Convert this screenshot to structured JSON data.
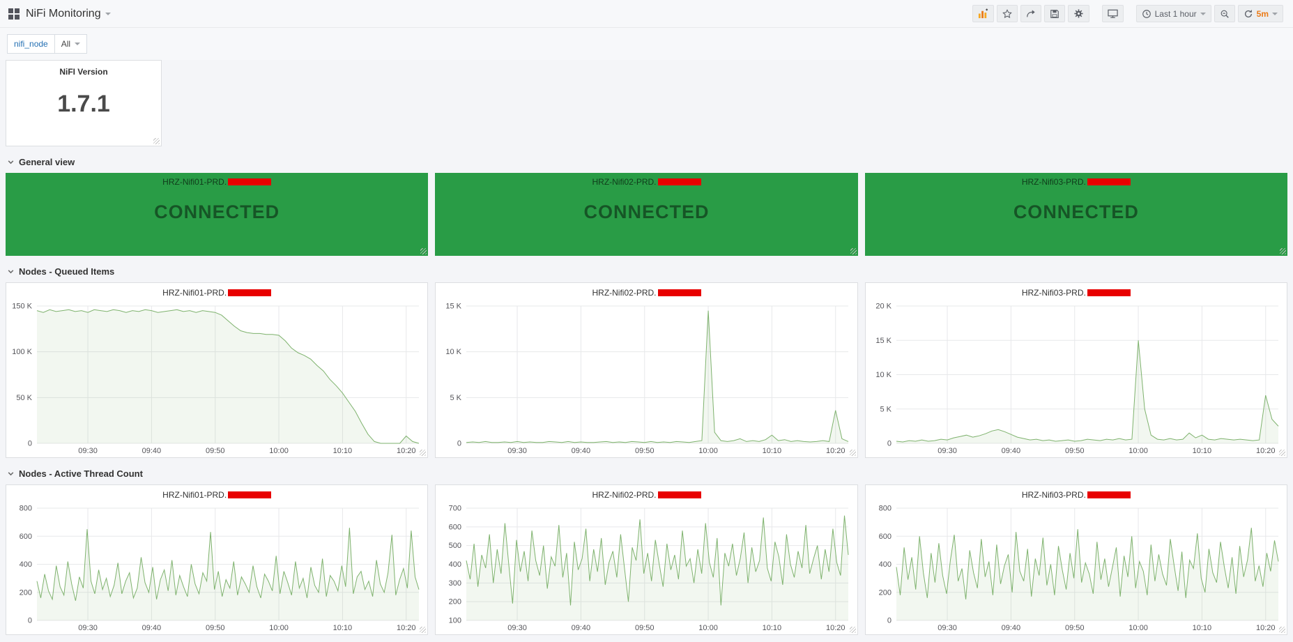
{
  "navbar": {
    "title": "NiFi Monitoring",
    "time_range": "Last 1 hour",
    "refresh_interval": "5m"
  },
  "submenu": {
    "variable_label": "nifi_node",
    "variable_value": "All"
  },
  "version_panel": {
    "title": "NiFI Version",
    "value": "1.7.1"
  },
  "rows": {
    "general": "General view",
    "queued": "Nodes - Queued Items",
    "threads": "Nodes - Active Thread Count"
  },
  "status_panels": [
    {
      "title": "HRZ-Nifi01-PRD.",
      "status": "CONNECTED"
    },
    {
      "title": "HRZ-Nifi02-PRD.",
      "status": "CONNECTED"
    },
    {
      "title": "HRZ-Nifi03-PRD.",
      "status": "CONNECTED"
    }
  ],
  "colors": {
    "status_green": "#299c46",
    "series_green": "#7eb26d",
    "redaction_red": "#e80000",
    "refresh_orange": "#eb7b18"
  },
  "icons": {
    "grafana_menu": "grid-of-squares",
    "add_panel": "bar-chart-plus",
    "star": "star-outline",
    "share": "forward-arrow",
    "save": "floppy-disk",
    "settings": "gear",
    "cycle_view": "monitor",
    "time_range": "clock",
    "zoom_out": "magnifier-minus",
    "refresh": "circular-arrow"
  },
  "time_axis": {
    "range": [
      "09:22",
      "10:22"
    ],
    "ticks": [
      {
        "f": 0.1333,
        "label": "09:30"
      },
      {
        "f": 0.3,
        "label": "09:40"
      },
      {
        "f": 0.4667,
        "label": "09:50"
      },
      {
        "f": 0.6333,
        "label": "10:00"
      },
      {
        "f": 0.8,
        "label": "10:10"
      },
      {
        "f": 0.9667,
        "label": "10:20"
      }
    ]
  },
  "chart_data": [
    {
      "type": "line",
      "title": "HRZ-Nifi01-PRD.",
      "redacted": true,
      "row": "Nodes - Queued Items",
      "unit": "K",
      "ylim": [
        0,
        150
      ],
      "yticks": [
        {
          "v": 0,
          "label": "0"
        },
        {
          "v": 50,
          "label": "50 K"
        },
        {
          "v": 100,
          "label": "100 K"
        },
        {
          "v": 150,
          "label": "150 K"
        }
      ],
      "values": [
        145,
        143,
        146,
        144,
        145,
        146,
        144,
        145,
        143,
        146,
        145,
        144,
        146,
        145,
        143,
        145,
        144,
        146,
        145,
        143,
        144,
        145,
        146,
        144,
        145,
        143,
        145,
        144,
        143,
        140,
        134,
        128,
        123,
        121,
        120,
        120,
        119,
        119,
        118,
        112,
        104,
        99,
        96,
        92,
        85,
        79,
        70,
        63,
        55,
        45,
        35,
        22,
        10,
        2,
        0,
        0,
        0,
        0,
        8,
        2,
        0
      ]
    },
    {
      "type": "line",
      "title": "HRZ-Nifi02-PRD.",
      "redacted": true,
      "row": "Nodes - Queued Items",
      "unit": "K",
      "ylim": [
        0,
        15
      ],
      "yticks": [
        {
          "v": 0,
          "label": "0"
        },
        {
          "v": 5,
          "label": "5 K"
        },
        {
          "v": 10,
          "label": "10 K"
        },
        {
          "v": 15,
          "label": "15 K"
        }
      ],
      "values": [
        0.1,
        0.15,
        0.1,
        0.2,
        0.1,
        0.1,
        0.15,
        0.1,
        0.2,
        0.1,
        0.15,
        0.1,
        0.1,
        0.2,
        0.15,
        0.1,
        0.2,
        0.1,
        0.15,
        0.1,
        0.1,
        0.15,
        0.2,
        0.1,
        0.15,
        0.1,
        0.2,
        0.15,
        0.1,
        0.2,
        0.1,
        0.15,
        0.1,
        0.2,
        0.15,
        0.1,
        0.2,
        0.3,
        14.5,
        1.2,
        0.3,
        0.2,
        0.3,
        0.5,
        0.2,
        0.3,
        0.2,
        0.4,
        0.9,
        0.3,
        0.4,
        0.2,
        0.3,
        0.2,
        0.15,
        0.2,
        0.3,
        0.2,
        3.6,
        0.5,
        0.2
      ]
    },
    {
      "type": "line",
      "title": "HRZ-Nifi03-PRD.",
      "redacted": true,
      "row": "Nodes - Queued Items",
      "unit": "K",
      "ylim": [
        0,
        20
      ],
      "yticks": [
        {
          "v": 0,
          "label": "0"
        },
        {
          "v": 5,
          "label": "5 K"
        },
        {
          "v": 10,
          "label": "10 K"
        },
        {
          "v": 15,
          "label": "15 K"
        },
        {
          "v": 20,
          "label": "20 K"
        }
      ],
      "values": [
        0.3,
        0.2,
        0.4,
        0.3,
        0.5,
        0.3,
        0.4,
        0.6,
        0.5,
        0.8,
        1.0,
        1.2,
        0.9,
        1.1,
        1.4,
        1.8,
        2.0,
        1.7,
        1.3,
        0.9,
        0.7,
        0.5,
        0.6,
        0.4,
        0.5,
        0.3,
        0.4,
        0.5,
        0.3,
        0.4,
        0.6,
        0.5,
        0.4,
        0.6,
        0.5,
        0.7,
        0.5,
        0.6,
        15.0,
        5.0,
        1.2,
        0.6,
        0.5,
        0.7,
        0.5,
        0.6,
        1.5,
        0.8,
        1.2,
        0.6,
        0.5,
        0.7,
        0.6,
        0.5,
        0.6,
        0.5,
        0.4,
        0.5,
        7.0,
        3.5,
        2.5
      ]
    },
    {
      "type": "line",
      "title": "HRZ-Nifi01-PRD.",
      "redacted": true,
      "row": "Nodes - Active Thread Count",
      "ylim": [
        0,
        800
      ],
      "yticks": [
        {
          "v": 0,
          "label": "0"
        },
        {
          "v": 200,
          "label": "200"
        },
        {
          "v": 400,
          "label": "400"
        },
        {
          "v": 600,
          "label": "600"
        },
        {
          "v": 800,
          "label": "800"
        }
      ],
      "values": [
        280,
        160,
        330,
        210,
        150,
        390,
        240,
        180,
        420,
        260,
        140,
        310,
        230,
        650,
        280,
        190,
        360,
        220,
        300,
        170,
        250,
        410,
        190,
        280,
        340,
        160,
        230,
        450,
        270,
        200,
        380,
        150,
        290,
        360,
        210,
        430,
        180,
        320,
        240,
        170,
        400,
        260,
        190,
        340,
        280,
        630,
        220,
        350,
        170,
        290,
        230,
        420,
        180,
        310,
        260,
        200,
        390,
        240,
        160,
        330,
        280,
        210,
        460,
        190,
        350,
        270,
        180,
        420,
        230,
        300,
        160,
        380,
        250,
        200,
        440,
        170,
        320,
        280,
        210,
        390,
        240,
        660,
        190,
        310,
        350,
        220,
        280,
        170,
        430,
        260,
        200,
        340,
        610,
        180,
        290,
        370,
        230,
        640,
        310,
        220
      ]
    },
    {
      "type": "line",
      "title": "HRZ-Nifi02-PRD.",
      "redacted": true,
      "row": "Nodes - Active Thread Count",
      "ylim": [
        100,
        700
      ],
      "yticks": [
        {
          "v": 100,
          "label": "100"
        },
        {
          "v": 200,
          "label": "200"
        },
        {
          "v": 300,
          "label": "300"
        },
        {
          "v": 400,
          "label": "400"
        },
        {
          "v": 500,
          "label": "500"
        },
        {
          "v": 600,
          "label": "600"
        },
        {
          "v": 700,
          "label": "700"
        }
      ],
      "values": [
        420,
        320,
        510,
        280,
        450,
        380,
        560,
        300,
        480,
        350,
        620,
        400,
        190,
        530,
        360,
        470,
        310,
        580,
        420,
        340,
        500,
        270,
        440,
        390,
        610,
        330,
        460,
        180,
        520,
        370,
        430,
        590,
        310,
        480,
        360,
        540,
        290,
        410,
        470,
        330,
        560,
        380,
        200,
        490,
        420,
        640,
        350,
        460,
        310,
        530,
        400,
        280,
        510,
        370,
        450,
        320,
        580,
        390,
        430,
        300,
        480,
        350,
        620,
        410,
        330,
        540,
        180,
        460,
        390,
        510,
        340,
        430,
        570,
        300,
        490,
        360,
        420,
        650,
        380,
        310,
        520,
        440,
        290,
        560,
        400,
        330,
        470,
        380,
        610,
        350,
        430,
        500,
        320,
        480,
        360,
        590,
        410,
        340,
        660,
        450
      ]
    },
    {
      "type": "line",
      "title": "HRZ-Nifi03-PRD.",
      "redacted": true,
      "row": "Nodes - Active Thread Count",
      "ylim": [
        0,
        800
      ],
      "yticks": [
        {
          "v": 0,
          "label": "0"
        },
        {
          "v": 200,
          "label": "200"
        },
        {
          "v": 400,
          "label": "400"
        },
        {
          "v": 600,
          "label": "600"
        },
        {
          "v": 800,
          "label": "800"
        }
      ],
      "values": [
        380,
        180,
        520,
        290,
        450,
        220,
        600,
        340,
        160,
        480,
        270,
        550,
        320,
        190,
        430,
        610,
        280,
        370,
        150,
        500,
        340,
        230,
        580,
        310,
        420,
        180,
        540,
        260,
        390,
        470,
        200,
        630,
        350,
        280,
        510,
        170,
        440,
        320,
        590,
        250,
        400,
        180,
        530,
        360,
        220,
        480,
        300,
        650,
        270,
        410,
        330,
        190,
        560,
        290,
        440,
        240,
        380,
        520,
        170,
        460,
        310,
        600,
        230,
        420,
        350,
        180,
        540,
        280,
        470,
        330,
        250,
        580,
        390,
        210,
        490,
        160,
        430,
        370,
        620,
        300,
        200,
        510,
        340,
        270,
        560,
        380,
        230,
        450,
        190,
        530,
        310,
        430,
        660,
        280,
        390,
        240,
        480,
        350,
        570,
        420
      ]
    }
  ]
}
